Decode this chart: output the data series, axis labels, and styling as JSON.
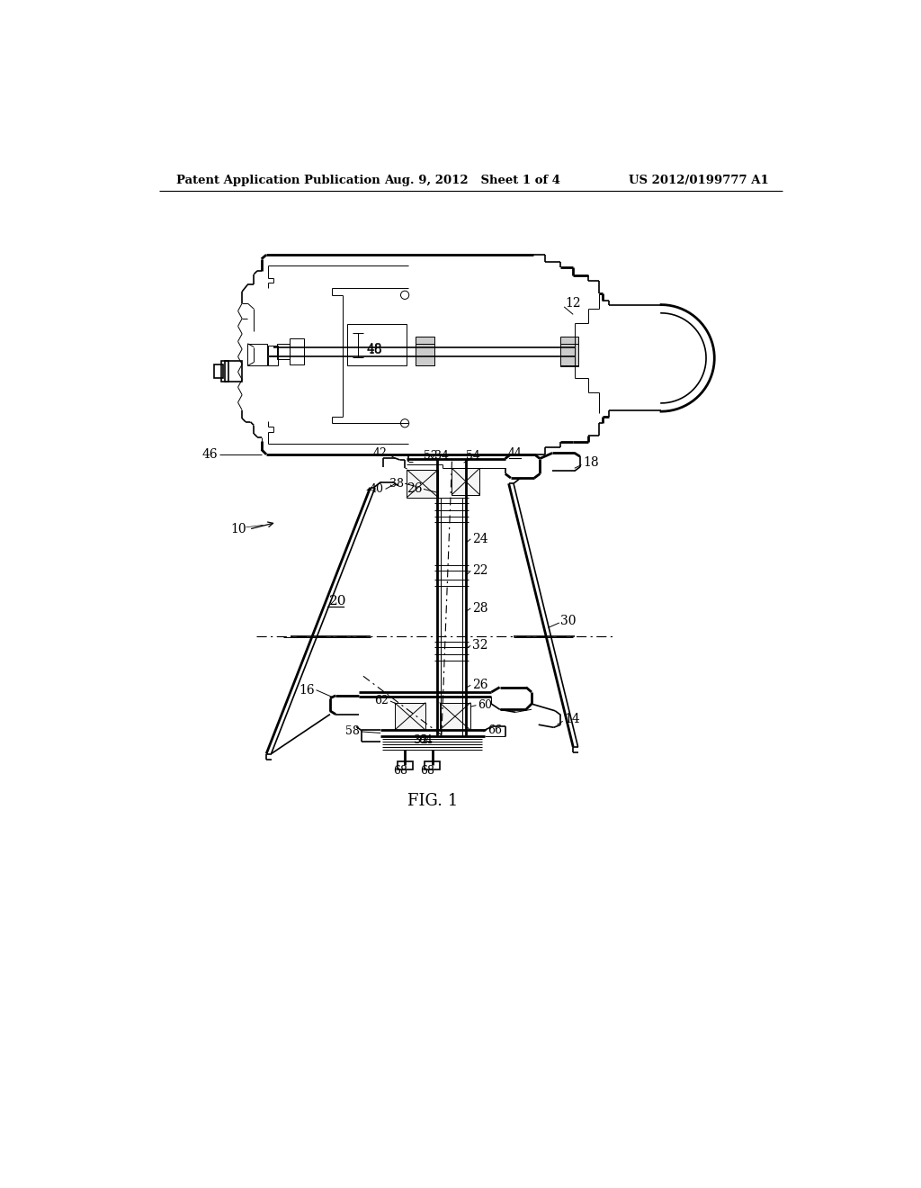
{
  "background_color": "#ffffff",
  "line_color": "#000000",
  "header_left": "Patent Application Publication",
  "header_center": "Aug. 9, 2012   Sheet 1 of 4",
  "header_right": "US 2012/0199777 A1",
  "figure_label": "FIG. 1"
}
